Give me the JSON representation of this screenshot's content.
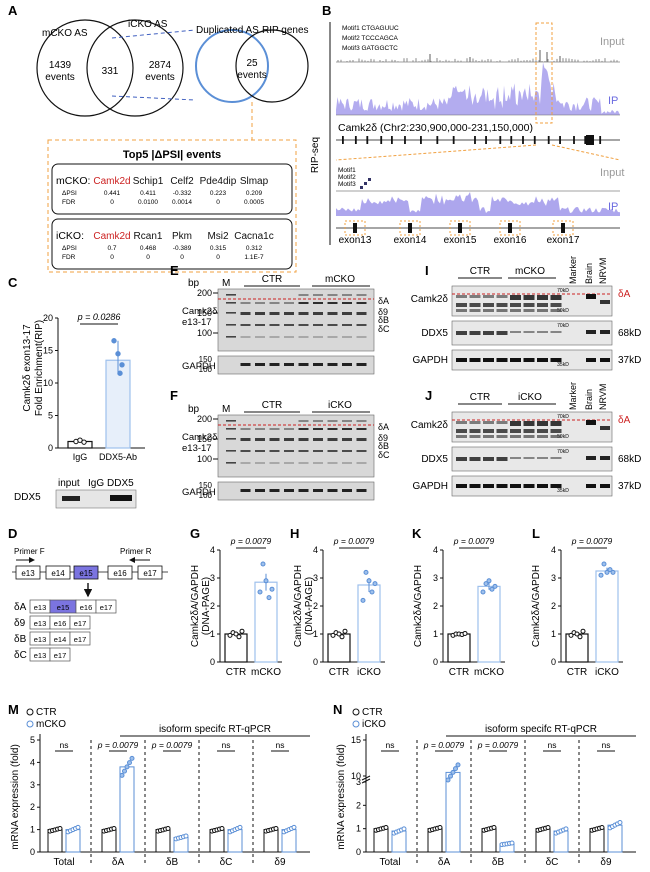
{
  "panels": {
    "A": "A",
    "B": "B",
    "C": "C",
    "D": "D",
    "E": "E",
    "F": "F",
    "G": "G",
    "H": "H",
    "I": "I",
    "J": "J",
    "K": "K",
    "L": "L",
    "M": "M",
    "N": "N"
  },
  "venn": {
    "mcko_label": "mCKO AS",
    "icko_label": "iCKO AS",
    "left_count": "1439",
    "left_unit": "events",
    "overlap": "331",
    "right_count": "2874",
    "right_unit": "events",
    "dup_label": "Duplicated AS",
    "rip_label": "RIP genes",
    "dup_count": "25",
    "dup_unit": "events"
  },
  "top5": {
    "title": "Top5 |ΔPSI| events",
    "mcko": {
      "group": "mCKO:",
      "genes": [
        "Camk2d",
        "Schip1",
        "Celf2",
        "Pde4dip",
        "Slmap"
      ],
      "dpsi": [
        "0.441",
        "0.411",
        "-0.332",
        "0.223",
        "0.209"
      ],
      "fdr": [
        "0",
        "0.0100",
        "0.0014",
        "0",
        "0.0005"
      ]
    },
    "icko": {
      "group": "iCKO:",
      "genes": [
        "Camk2d",
        "Rcan1",
        "Pkm",
        "Msi2",
        "Cacna1c"
      ],
      "dpsi": [
        "0.7",
        "0.468",
        "-0.389",
        "0.315",
        "0.312"
      ],
      "fdr": [
        "0",
        "0",
        "0",
        "0",
        "1.1E-7"
      ]
    },
    "dpsi_label": "ΔPSI",
    "fdr_label": "FDR"
  },
  "ripseq": {
    "ylabel": "RIP-seq",
    "motifs": [
      "Motif1 CTGAGUUC",
      "Motif2 TCCCAGCA",
      "Motif3 GATGGCTC"
    ],
    "motifs_short": [
      "Motif1",
      "Motif2",
      "Motif3"
    ],
    "input": "Input",
    "ip": "IP",
    "gene": "Camk2δ (Chr2:230,900,000-231,150,000)",
    "exons": [
      "exon13",
      "exon14",
      "exon15",
      "exon16",
      "exon17"
    ]
  },
  "panelC": {
    "ylabel": "Camk2δ exon13-17\nFold Enrichment(RIP)",
    "ylabel1": "Camk2δ exon13-17",
    "ylabel2": "Fold Enrichment(RIP)",
    "yticks": [
      "0",
      "5",
      "10",
      "15",
      "20"
    ],
    "pvalue": "p = 0.0286",
    "categories": [
      "IgG",
      "DDX5-Ab"
    ],
    "blot_lanes": [
      "input",
      "IgG",
      "DDX5"
    ],
    "blot_label": "DDX5"
  },
  "panelD": {
    "primerF": "Primer F",
    "primerR": "Primer R",
    "exons": [
      "e13",
      "e14",
      "e15",
      "e16",
      "e17"
    ],
    "isoforms": [
      {
        "name": "δA",
        "exons": [
          "e13",
          "e15",
          "e16",
          "e17"
        ]
      },
      {
        "name": "δ9",
        "exons": [
          "e13",
          "e16",
          "e17"
        ]
      },
      {
        "name": "δB",
        "exons": [
          "e13",
          "e14",
          "e17"
        ]
      },
      {
        "name": "δC",
        "exons": [
          "e13",
          "e17"
        ]
      }
    ]
  },
  "gelE": {
    "bp": "bp",
    "M": "M",
    "ctr": "CTR",
    "ko": "mCKO",
    "row1": "Camk2δ",
    "row1b": "e13-17",
    "row2": "GAPDH",
    "ladder": [
      "200",
      "150",
      "100"
    ],
    "bands": [
      "δA",
      "δ9",
      "δB",
      "δC"
    ]
  },
  "gelF": {
    "bp": "bp",
    "M": "M",
    "ctr": "CTR",
    "ko": "iCKO",
    "row1": "Camk2δ",
    "row1b": "e13-17",
    "row2": "GAPDH",
    "ladder": [
      "200",
      "150",
      "100"
    ],
    "bands": [
      "δA",
      "δ9",
      "δB",
      "δC"
    ]
  },
  "wbI": {
    "ctr": "CTR",
    "ko": "mCKO",
    "marker": "Marker",
    "brain": "Brain",
    "nrvm": "NRVM",
    "rows": [
      "Camk2δ",
      "DDX5",
      "GAPDH"
    ],
    "marker_kd": [
      "70kD",
      "50kD",
      "70kD",
      "35kD"
    ],
    "sizes": [
      "68kD",
      "37kD"
    ],
    "da": "δA"
  },
  "wbJ": {
    "ctr": "CTR",
    "ko": "iCKO",
    "marker": "Marker",
    "brain": "Brain",
    "nrvm": "NRVM",
    "rows": [
      "Camk2δ",
      "DDX5",
      "GAPDH"
    ],
    "marker_kd": [
      "70kD",
      "50kD",
      "70kD",
      "35kD"
    ],
    "sizes": [
      "68kD",
      "37kD"
    ],
    "da": "δA"
  },
  "bars_small": [
    {
      "panel": "G",
      "ylabel1": "Camk2δA/GAPDH",
      "ylabel2": "(DNA-PAGE)",
      "categories": [
        "CTR",
        "mCKO"
      ],
      "values": [
        1.0,
        2.85
      ],
      "err": [
        0.05,
        0.3
      ],
      "pvalue": "p = 0.0079",
      "yticks": [
        "0",
        "1",
        "2",
        "3",
        "4"
      ],
      "ymax": 4,
      "points": [
        [
          0.95,
          1.05,
          1.0,
          0.9,
          1.1
        ],
        [
          2.5,
          3.5,
          2.9,
          2.3,
          2.6
        ]
      ]
    },
    {
      "panel": "H",
      "ylabel1": "Camk2δA/GAPDH",
      "ylabel2": "(DNA-PAGE)",
      "categories": [
        "CTR",
        "iCKO"
      ],
      "values": [
        1.0,
        2.75
      ],
      "err": [
        0.05,
        0.25
      ],
      "pvalue": "p = 0.0079",
      "yticks": [
        "0",
        "1",
        "2",
        "3",
        "4"
      ],
      "ymax": 4,
      "points": [
        [
          0.95,
          1.05,
          1.0,
          0.9,
          1.1
        ],
        [
          2.2,
          3.2,
          2.9,
          2.5,
          2.8
        ]
      ]
    },
    {
      "panel": "K",
      "ylabel1": "Camk2δA/GAPDH",
      "ylabel2": "",
      "categories": [
        "CTR",
        "mCKO"
      ],
      "values": [
        1.0,
        2.7
      ],
      "err": [
        0.03,
        0.12
      ],
      "pvalue": "p = 0.0079",
      "yticks": [
        "0",
        "1",
        "2",
        "3",
        "4"
      ],
      "ymax": 4,
      "points": [
        [
          0.95,
          1.0,
          1.0,
          0.98,
          1.02
        ],
        [
          2.5,
          2.8,
          2.9,
          2.6,
          2.7
        ]
      ]
    },
    {
      "panel": "L",
      "ylabel1": "Camk2δA/GAPDH",
      "ylabel2": "",
      "categories": [
        "CTR",
        "iCKO"
      ],
      "values": [
        1.0,
        3.25
      ],
      "err": [
        0.05,
        0.12
      ],
      "pvalue": "p = 0.0079",
      "yticks": [
        "0",
        "1",
        "2",
        "3",
        "4"
      ],
      "ymax": 4,
      "points": [
        [
          0.95,
          1.05,
          1.0,
          0.9,
          1.1
        ],
        [
          3.1,
          3.5,
          3.2,
          3.3,
          3.2
        ]
      ]
    }
  ],
  "panelM": {
    "legend": [
      "CTR",
      "mCKO"
    ],
    "ylabel": "mRNA expression (fold)",
    "header": "isoform specifc RT-qPCR",
    "categories": [
      "Total",
      "δA",
      "δB",
      "δC",
      "δ9"
    ],
    "ctr": [
      1.0,
      1.0,
      1.0,
      1.0,
      1.0
    ],
    "ko": [
      1.0,
      3.8,
      0.65,
      1.0,
      1.0
    ],
    "stats": [
      "ns",
      "p = 0.0079",
      "p = 0.0079",
      "ns",
      "ns"
    ],
    "yticks": [
      "0",
      "1",
      "2",
      "3",
      "4",
      "5"
    ],
    "ymax": 5
  },
  "panelN": {
    "legend": [
      "CTR",
      "iCKO"
    ],
    "ylabel": "mRNA expression (fold)",
    "header": "isoform specifc RT-qPCR",
    "categories": [
      "Total",
      "δA",
      "δB",
      "δC",
      "δ9"
    ],
    "ctr": [
      1.0,
      1.0,
      1.0,
      1.0,
      1.0
    ],
    "ko": [
      0.9,
      10.5,
      0.35,
      0.9,
      1.15
    ],
    "stats": [
      "ns",
      "p = 0.0079",
      "p = 0.0079",
      "ns",
      "ns"
    ],
    "yticks_low": [
      "0",
      "1",
      "2",
      "3"
    ],
    "yticks_high": [
      "10",
      "15"
    ]
  },
  "chart_data": [
    {
      "type": "bar",
      "panel": "C",
      "categories": [
        "IgG",
        "DDX5-Ab"
      ],
      "values": [
        1.0,
        13.5
      ],
      "ylim": [
        0,
        20
      ],
      "ylabel": "Camk2δ exon13-17 Fold Enrichment(RIP)"
    },
    {
      "type": "bar",
      "panel": "G",
      "categories": [
        "CTR",
        "mCKO"
      ],
      "values": [
        1.0,
        2.85
      ],
      "ylim": [
        0,
        4
      ],
      "ylabel": "Camk2δA/GAPDH (DNA-PAGE)"
    },
    {
      "type": "bar",
      "panel": "H",
      "categories": [
        "CTR",
        "iCKO"
      ],
      "values": [
        1.0,
        2.75
      ],
      "ylim": [
        0,
        4
      ],
      "ylabel": "Camk2δA/GAPDH (DNA-PAGE)"
    },
    {
      "type": "bar",
      "panel": "K",
      "categories": [
        "CTR",
        "mCKO"
      ],
      "values": [
        1.0,
        2.7
      ],
      "ylim": [
        0,
        4
      ],
      "ylabel": "Camk2δA/GAPDH"
    },
    {
      "type": "bar",
      "panel": "L",
      "categories": [
        "CTR",
        "iCKO"
      ],
      "values": [
        1.0,
        3.25
      ],
      "ylim": [
        0,
        4
      ],
      "ylabel": "Camk2δA/GAPDH"
    },
    {
      "type": "bar",
      "panel": "M",
      "categories": [
        "Total",
        "δA",
        "δB",
        "δC",
        "δ9"
      ],
      "series": [
        {
          "name": "CTR",
          "values": [
            1.0,
            1.0,
            1.0,
            1.0,
            1.0
          ]
        },
        {
          "name": "mCKO",
          "values": [
            1.0,
            3.8,
            0.65,
            1.0,
            1.0
          ]
        }
      ],
      "ylim": [
        0,
        5
      ],
      "ylabel": "mRNA expression (fold)"
    },
    {
      "type": "bar",
      "panel": "N",
      "categories": [
        "Total",
        "δA",
        "δB",
        "δC",
        "δ9"
      ],
      "series": [
        {
          "name": "CTR",
          "values": [
            1.0,
            1.0,
            1.0,
            1.0,
            1.0
          ]
        },
        {
          "name": "iCKO",
          "values": [
            0.9,
            10.5,
            0.35,
            0.9,
            1.15
          ]
        }
      ],
      "ylabel": "mRNA expression (fold)"
    }
  ],
  "colors": {
    "accent": "#5b8fd6",
    "lightblue": "#9ec0ec",
    "orange": "#f0a040",
    "red": "#cc2222",
    "purple": "#8a80e6",
    "violet": "#7b74e0"
  }
}
